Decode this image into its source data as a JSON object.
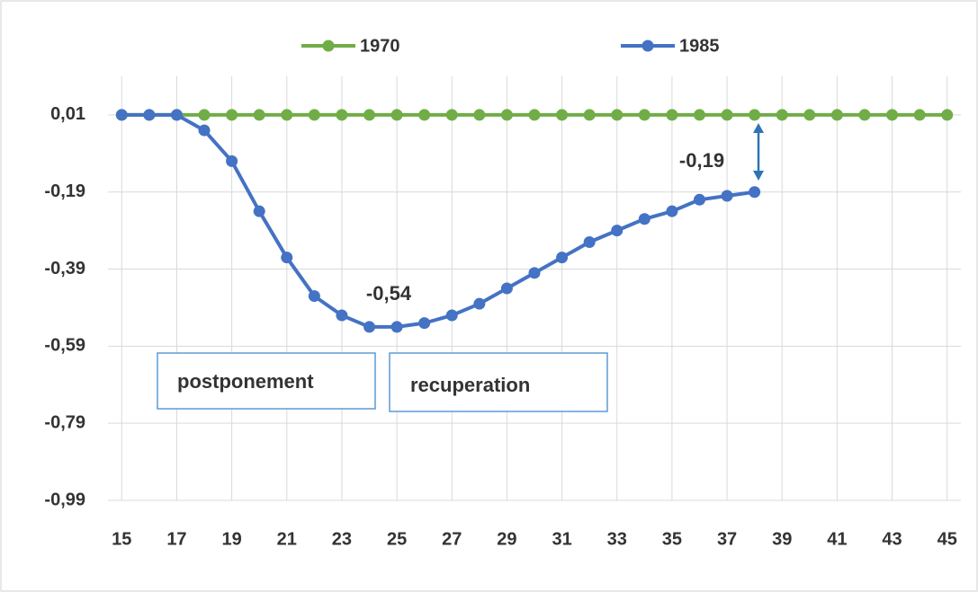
{
  "chart_data": {
    "type": "line",
    "x": [
      15,
      16,
      17,
      18,
      19,
      20,
      21,
      22,
      23,
      24,
      25,
      26,
      27,
      28,
      29,
      30,
      31,
      32,
      33,
      34,
      35,
      36,
      37,
      38,
      39,
      40,
      41,
      42,
      43,
      44,
      45
    ],
    "series": [
      {
        "name": "1970",
        "color": "#70ad47",
        "values": [
          0.01,
          0.01,
          0.01,
          0.01,
          0.01,
          0.01,
          0.01,
          0.01,
          0.01,
          0.01,
          0.01,
          0.01,
          0.01,
          0.01,
          0.01,
          0.01,
          0.01,
          0.01,
          0.01,
          0.01,
          0.01,
          0.01,
          0.01,
          0.01,
          0.01,
          0.01,
          0.01,
          0.01,
          0.01,
          0.01,
          0.01
        ]
      },
      {
        "name": "1985",
        "color": "#4472c4",
        "values": [
          0.01,
          0.01,
          0.01,
          -0.03,
          -0.11,
          -0.24,
          -0.36,
          -0.46,
          -0.51,
          -0.54,
          -0.54,
          -0.53,
          -0.51,
          -0.48,
          -0.44,
          -0.4,
          -0.36,
          -0.32,
          -0.29,
          -0.26,
          -0.24,
          -0.21,
          -0.2,
          -0.19,
          null,
          null,
          null,
          null,
          null,
          null,
          null
        ]
      }
    ],
    "xlim": [
      14.5,
      45.5
    ],
    "xticks": [
      15,
      17,
      19,
      21,
      23,
      25,
      27,
      29,
      31,
      33,
      35,
      37,
      39,
      41,
      43,
      45
    ],
    "ylim": [
      -0.99,
      0.11
    ],
    "yticks": [
      {
        "value": 0.01,
        "label": "0,01"
      },
      {
        "value": -0.19,
        "label": "-0,19"
      },
      {
        "value": -0.39,
        "label": "-0,39"
      },
      {
        "value": -0.59,
        "label": "-0,59"
      },
      {
        "value": -0.79,
        "label": "-0,79"
      },
      {
        "value": -0.99,
        "label": "-0,99"
      }
    ],
    "grid": true,
    "legend": "top",
    "annotations": [
      "-0,54",
      "-0,19",
      "postponement",
      "recuperation"
    ]
  }
}
